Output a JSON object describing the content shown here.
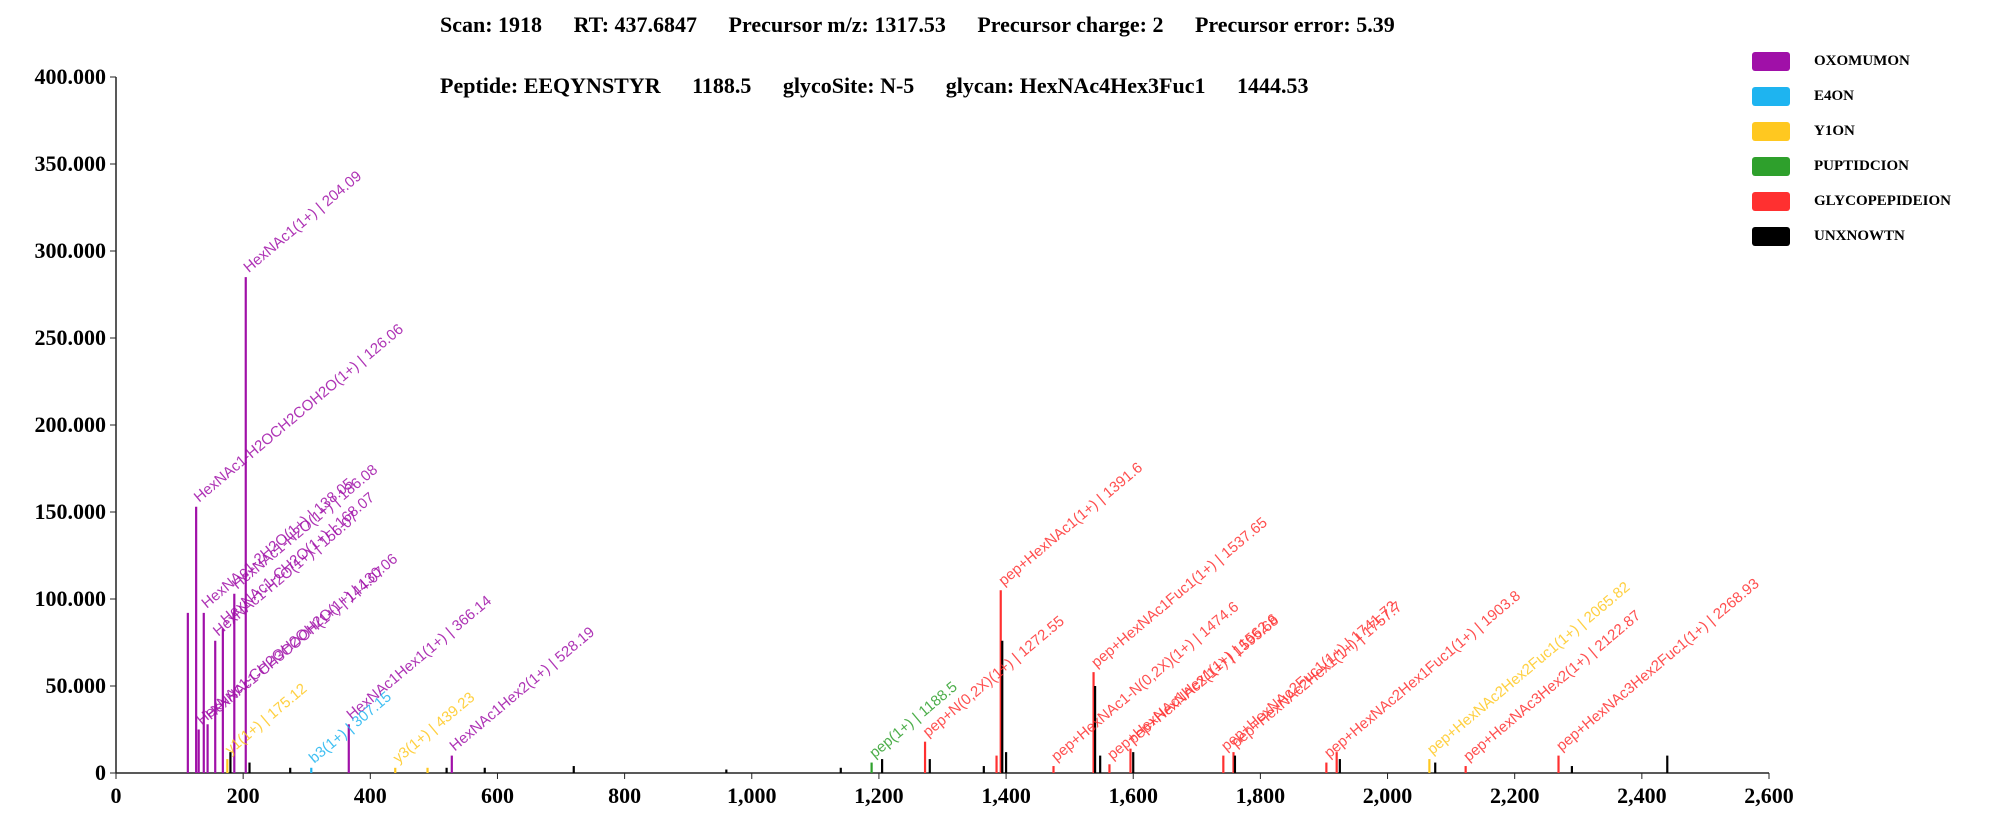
{
  "header": {
    "scan": "Scan: 1918",
    "rt": "RT: 437.6847",
    "precursor_mz": "Precursor m/z: 1317.53",
    "precursor_charge": "Precursor charge: 2",
    "precursor_error": "Precursor error: 5.39",
    "peptide": "Peptide: EEQYNSTYR",
    "peptide_mass": "1188.5",
    "glycosite": "glycoSite: N-5",
    "glycan": "glycan: HexNAc4Hex3Fuc1",
    "glycan_mass": "1444.53"
  },
  "legend": [
    {
      "label": "OXOMUMON",
      "color": "#a010a8"
    },
    {
      "label": "E4ON",
      "color": "#1eb4f0"
    },
    {
      "label": "Y1ON",
      "color": "#ffc820"
    },
    {
      "label": "PUPTIDCION",
      "color": "#2ea02c"
    },
    {
      "label": "GLYCOPEPIDEION",
      "color": "#ff3030"
    },
    {
      "label": "UNXNOWTN",
      "color": "#000000"
    }
  ],
  "chart_data": {
    "type": "bar",
    "xlim": [
      0,
      2600
    ],
    "ylim": [
      0,
      400000
    ],
    "x_ticks": [
      "0",
      "200",
      "400",
      "600",
      "800",
      "1,000",
      "1,200",
      "1,400",
      "1,600",
      "1,800",
      "2,000",
      "2,200",
      "2,400",
      "2,600"
    ],
    "y_ticks": [
      "0",
      "50.000",
      "100.000",
      "150.000",
      "200.000",
      "250.000",
      "300.000",
      "350.000",
      "400.000"
    ],
    "grid": false,
    "legend_position": "top-right",
    "peaks": [
      {
        "mz": 113,
        "intensity": 92000,
        "category": "OXOMUMON",
        "label": ""
      },
      {
        "mz": 126.06,
        "intensity": 153000,
        "category": "OXOMUMON",
        "label": "HexNAc1-H2OCH2COH2O(1+) | 126.06"
      },
      {
        "mz": 130.06,
        "intensity": 25000,
        "category": "OXOMUMON",
        "label": "HexNAc1-CH2OH2OH2O(1+) | 130.06"
      },
      {
        "mz": 138.05,
        "intensity": 92000,
        "category": "OXOMUMON",
        "label": "HexNAc1-2H2O(1+) | 138.05"
      },
      {
        "mz": 144.07,
        "intensity": 28000,
        "category": "OXOMUMON",
        "label": "HexNAc1-CH3COOH(1+) | 144.07"
      },
      {
        "mz": 156.07,
        "intensity": 76000,
        "category": "OXOMUMON",
        "label": "HexNAc1-H2O(1+) | 156.07"
      },
      {
        "mz": 168.07,
        "intensity": 83000,
        "category": "OXOMUMON",
        "label": "HexNAc1-CH2O(1+) | 168.07"
      },
      {
        "mz": 186.08,
        "intensity": 103000,
        "category": "OXOMUMON",
        "label": "HexNAc1-H2O(1+) | 186.08"
      },
      {
        "mz": 204.09,
        "intensity": 285000,
        "category": "OXOMUMON",
        "label": "HexNAc1(1+) | 204.09"
      },
      {
        "mz": 175.12,
        "intensity": 8000,
        "category": "Y1ON",
        "label": "y1(1+) | 175.12"
      },
      {
        "mz": 180,
        "intensity": 12000,
        "category": "UNXNOWTN",
        "label": ""
      },
      {
        "mz": 210,
        "intensity": 6000,
        "category": "UNXNOWTN",
        "label": ""
      },
      {
        "mz": 274,
        "intensity": 3000,
        "category": "UNXNOWTN",
        "label": ""
      },
      {
        "mz": 366.14,
        "intensity": 28000,
        "category": "OXOMUMON",
        "label": "HexNAc1Hex1(1+) | 366.14"
      },
      {
        "mz": 307.15,
        "intensity": 3000,
        "category": "E4ON",
        "label": "b3(1+) | 307.15"
      },
      {
        "mz": 439.23,
        "intensity": 3000,
        "category": "Y1ON",
        "label": "y3(1+) | 439.23"
      },
      {
        "mz": 528.19,
        "intensity": 10000,
        "category": "OXOMUMON",
        "label": "HexNAc1Hex2(1+) | 528.19"
      },
      {
        "mz": 490,
        "intensity": 3000,
        "category": "Y1ON",
        "label": ""
      },
      {
        "mz": 520,
        "intensity": 3000,
        "category": "UNXNOWTN",
        "label": ""
      },
      {
        "mz": 580,
        "intensity": 3000,
        "category": "UNXNOWTN",
        "label": ""
      },
      {
        "mz": 720,
        "intensity": 4000,
        "category": "UNXNOWTN",
        "label": ""
      },
      {
        "mz": 960,
        "intensity": 2000,
        "category": "UNXNOWTN",
        "label": ""
      },
      {
        "mz": 1140,
        "intensity": 3000,
        "category": "UNXNOWTN",
        "label": ""
      },
      {
        "mz": 1188.5,
        "intensity": 6000,
        "category": "PUPTIDCION",
        "label": "pep(1+) | 1188.5"
      },
      {
        "mz": 1205,
        "intensity": 8000,
        "category": "UNXNOWTN",
        "label": ""
      },
      {
        "mz": 1272.55,
        "intensity": 18000,
        "category": "GLYCOPEPIDEION",
        "label": "pep+N(0,2X)(1+) | 1272.55"
      },
      {
        "mz": 1280,
        "intensity": 8000,
        "category": "UNXNOWTN",
        "label": ""
      },
      {
        "mz": 1365,
        "intensity": 4000,
        "category": "UNXNOWTN",
        "label": ""
      },
      {
        "mz": 1385,
        "intensity": 10000,
        "category": "GLYCOPEPIDEION",
        "label": ""
      },
      {
        "mz": 1391.6,
        "intensity": 105000,
        "category": "GLYCOPEPIDEION",
        "label": "pep+HexNAc1(1+) | 1391.6"
      },
      {
        "mz": 1394,
        "intensity": 76000,
        "category": "UNXNOWTN",
        "label": ""
      },
      {
        "mz": 1400,
        "intensity": 12000,
        "category": "UNXNOWTN",
        "label": ""
      },
      {
        "mz": 1474.6,
        "intensity": 4000,
        "category": "GLYCOPEPIDEION",
        "label": "pep+HexNAc1-N(0,2X)(1+) | 1474.6"
      },
      {
        "mz": 1537.6,
        "intensity": 58000,
        "category": "GLYCOPEPIDEION",
        "label": "pep+HexNAc1Fuc1(1+) | 1537.65"
      },
      {
        "mz": 1540,
        "intensity": 50000,
        "category": "UNXNOWTN",
        "label": ""
      },
      {
        "mz": 1548,
        "intensity": 10000,
        "category": "UNXNOWTN",
        "label": ""
      },
      {
        "mz": 1562.6,
        "intensity": 5000,
        "category": "GLYCOPEPIDEION",
        "label": "pep+HexNAc1Hex1(1+) | 1562.6"
      },
      {
        "mz": 1595.68,
        "intensity": 14000,
        "category": "GLYCOPEPIDEION",
        "label": "pep+HexNAc2(1+) | 1595.68"
      },
      {
        "mz": 1600,
        "intensity": 12000,
        "category": "UNXNOWTN",
        "label": ""
      },
      {
        "mz": 1741.72,
        "intensity": 10000,
        "category": "GLYCOPEPIDEION",
        "label": "pep+HexNAc2Fuc1(1+) | 1741.72"
      },
      {
        "mz": 1757.7,
        "intensity": 12000,
        "category": "GLYCOPEPIDEION",
        "label": "pep+HexNAc2Hex1(1+) | 1757.7"
      },
      {
        "mz": 1760,
        "intensity": 10000,
        "category": "UNXNOWTN",
        "label": ""
      },
      {
        "mz": 1903.8,
        "intensity": 6000,
        "category": "GLYCOPEPIDEION",
        "label": "pep+HexNAc2Hex1Fuc1(1+) | 1903.8"
      },
      {
        "mz": 1920,
        "intensity": 12000,
        "category": "GLYCOPEPIDEION",
        "label": ""
      },
      {
        "mz": 1925,
        "intensity": 8000,
        "category": "UNXNOWTN",
        "label": ""
      },
      {
        "mz": 2065.82,
        "intensity": 8000,
        "category": "Y1ON",
        "label": "pep+HexNAc2Hex2Fuc1(1+) | 2065.82"
      },
      {
        "mz": 2075,
        "intensity": 6000,
        "category": "UNXNOWTN",
        "label": ""
      },
      {
        "mz": 2122.87,
        "intensity": 4000,
        "category": "GLYCOPEPIDEION",
        "label": "pep+HexNAc3Hex2(1+) | 2122.87"
      },
      {
        "mz": 2268.93,
        "intensity": 10000,
        "category": "GLYCOPEPIDEION",
        "label": "pep+HexNAc3Hex2Fuc1(1+) | 2268.93"
      },
      {
        "mz": 2290,
        "intensity": 4000,
        "category": "UNXNOWTN",
        "label": ""
      },
      {
        "mz": 2440,
        "intensity": 10000,
        "category": "UNXNOWTN",
        "label": ""
      }
    ]
  }
}
